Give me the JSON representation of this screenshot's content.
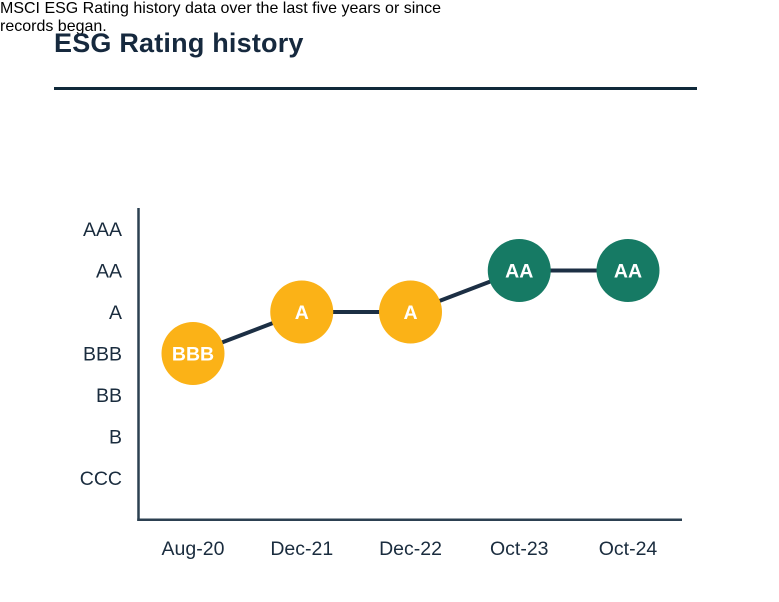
{
  "page": {
    "title": "ESG Rating history",
    "subtitle_lines": [
      "MSCI ESG Rating history data over the last five years or since",
      "records began."
    ]
  },
  "colors": {
    "heading_text": "#16293E",
    "body_text": "#1C2D40",
    "divider": "#10293A",
    "axis_line": "#2C4051",
    "axis_text": "#1A2C3E",
    "connector_line": "#1C2F44",
    "rating_average_yellow": "#FBB217",
    "rating_leader_teal": "#167A64",
    "marker_text": "#FFFFFF",
    "background": "#FFFFFF"
  },
  "chart_data": {
    "type": "line",
    "title": "ESG Rating history",
    "subtitle": "MSCI ESG Rating history data over the last five years or since records began.",
    "x": [
      "Aug-20",
      "Dec-21",
      "Dec-22",
      "Oct-23",
      "Oct-24"
    ],
    "y_scale_top_to_bottom": [
      "AAA",
      "AA",
      "A",
      "BBB",
      "BB",
      "B",
      "CCC"
    ],
    "series": [
      {
        "name": "MSCI ESG Rating",
        "values": [
          "BBB",
          "A",
          "A",
          "AA",
          "AA"
        ],
        "marker_colors": [
          "#FBB217",
          "#FBB217",
          "#FBB217",
          "#167A64",
          "#167A64"
        ]
      }
    ],
    "grid": false,
    "legend": "none"
  }
}
